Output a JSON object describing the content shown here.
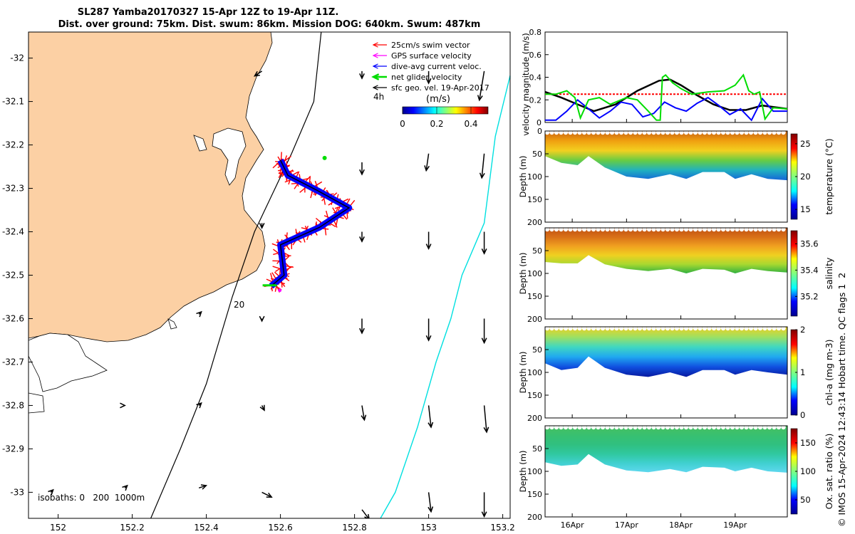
{
  "title": {
    "line1": "SL287 Yamba20170327 15-Apr 12Z to 19-Apr 11Z.",
    "line2": "Dist. over ground: 75km. Dist. swum: 86km. Mission DOG: 640km. Swum: 487km"
  },
  "copyright": "© IMOS 15-Apr-2024 12:43:14 Hobart time. QC flags 1  2",
  "colors": {
    "land": "#fcd0a4",
    "swim": "#ff0000",
    "gps": "#ff00ff",
    "dac": "#0000ff",
    "net": "#00dd00",
    "geo": "#000000",
    "isobath200": "#000000",
    "isobath1000": "#00e0e0"
  },
  "chart_data": [
    {
      "type": "map",
      "xlim": [
        151.92,
        153.22
      ],
      "ylim": [
        -33.06,
        -31.94
      ],
      "xticks": [
        152,
        152.2,
        152.4,
        152.6,
        152.8,
        153,
        153.2
      ],
      "xtick_labels": [
        "152",
        "152.2",
        "152.4",
        "152.6",
        "152.8",
        "153",
        "153.2"
      ],
      "yticks": [
        -32,
        -32.1,
        -32.2,
        -32.3,
        -32.4,
        -32.5,
        -32.6,
        -32.7,
        -32.8,
        -32.9,
        -33
      ],
      "ytick_labels": [
        "-32",
        "-32.1",
        "-32.2",
        "-32.3",
        "-32.4",
        "-32.5",
        "-32.6",
        "-32.7",
        "-32.8",
        "-32.9",
        "-33"
      ],
      "legend": [
        {
          "label": "25cm/s swim vector",
          "color": "#ff0000"
        },
        {
          "label": "GPS surface velocity",
          "color": "#ff00ff"
        },
        {
          "label": "dive-avg current veloc.",
          "color": "#0000ff"
        },
        {
          "label": "net glider velocity",
          "color": "#00dd00"
        },
        {
          "label": "sfc geo. vel. 19-Apr-2017",
          "color": "#000000"
        }
      ],
      "legend_extra": "4h",
      "colorbar": {
        "label": "(m/s)",
        "ticks": [
          0,
          0.2,
          0.4
        ],
        "range": [
          0,
          0.5
        ]
      },
      "annotation_depth": "20",
      "isobath_note": "isobaths: 0   200  1000m",
      "track": [
        [
          152.6,
          -32.235
        ],
        [
          152.62,
          -32.27
        ],
        [
          152.7,
          -32.305
        ],
        [
          152.785,
          -32.345
        ],
        [
          152.705,
          -32.39
        ],
        [
          152.6,
          -32.43
        ],
        [
          152.61,
          -32.5
        ],
        [
          152.575,
          -32.525
        ]
      ],
      "isobath_200": [
        [
          152.71,
          -31.94
        ],
        [
          152.69,
          -32.1
        ],
        [
          152.63,
          -32.22
        ],
        [
          152.53,
          -32.4
        ],
        [
          152.47,
          -32.55
        ],
        [
          152.4,
          -32.75
        ],
        [
          152.33,
          -32.9
        ],
        [
          152.25,
          -33.06
        ]
      ],
      "isobath_1000": [
        [
          153.22,
          -32.04
        ],
        [
          153.18,
          -32.18
        ],
        [
          153.15,
          -32.38
        ],
        [
          153.09,
          -32.5
        ],
        [
          153.06,
          -32.6
        ],
        [
          153.02,
          -32.7
        ],
        [
          152.97,
          -32.85
        ],
        [
          152.91,
          -33
        ],
        [
          152.87,
          -33.06
        ]
      ],
      "geo_vectors": [
        {
          "lon": 152.55,
          "lat": -32.03,
          "u": -0.03,
          "v": -0.02
        },
        {
          "lon": 152.82,
          "lat": -32.03,
          "u": 0.0,
          "v": -0.03
        },
        {
          "lon": 153.0,
          "lat": -32.03,
          "u": 0.0,
          "v": -0.05
        },
        {
          "lon": 153.15,
          "lat": -32.03,
          "u": -0.02,
          "v": -0.12
        },
        {
          "lon": 152.82,
          "lat": -32.24,
          "u": 0.0,
          "v": -0.05
        },
        {
          "lon": 153.0,
          "lat": -32.22,
          "u": -0.01,
          "v": -0.07
        },
        {
          "lon": 153.15,
          "lat": -32.22,
          "u": -0.01,
          "v": -0.1
        },
        {
          "lon": 152.55,
          "lat": -32.38,
          "u": 0.0,
          "v": -0.02
        },
        {
          "lon": 152.82,
          "lat": -32.4,
          "u": 0.0,
          "v": -0.04
        },
        {
          "lon": 153.0,
          "lat": -32.4,
          "u": 0.0,
          "v": -0.07
        },
        {
          "lon": 153.15,
          "lat": -32.4,
          "u": 0.0,
          "v": -0.09
        },
        {
          "lon": 152.38,
          "lat": -32.59,
          "u": 0.01,
          "v": 0.01
        },
        {
          "lon": 152.55,
          "lat": -32.6,
          "u": 0.0,
          "v": -0.01
        },
        {
          "lon": 152.82,
          "lat": -32.6,
          "u": 0.0,
          "v": -0.06
        },
        {
          "lon": 153.0,
          "lat": -32.6,
          "u": 0.0,
          "v": -0.09
        },
        {
          "lon": 153.15,
          "lat": -32.6,
          "u": 0.0,
          "v": -0.1
        },
        {
          "lon": 152.38,
          "lat": -32.8,
          "u": 0.01,
          "v": 0.01
        },
        {
          "lon": 152.55,
          "lat": -32.8,
          "u": 0.01,
          "v": -0.02
        },
        {
          "lon": 152.82,
          "lat": -32.8,
          "u": 0.01,
          "v": -0.06
        },
        {
          "lon": 153.0,
          "lat": -32.8,
          "u": 0.01,
          "v": -0.09
        },
        {
          "lon": 153.15,
          "lat": -32.8,
          "u": 0.01,
          "v": -0.11
        },
        {
          "lon": 152.18,
          "lat": -32.99,
          "u": 0.01,
          "v": 0.01
        },
        {
          "lon": 152.38,
          "lat": -32.99,
          "u": 0.03,
          "v": 0.01
        },
        {
          "lon": 152.55,
          "lat": -33.0,
          "u": 0.04,
          "v": -0.02
        },
        {
          "lon": 152.82,
          "lat": -33.04,
          "u": 0.03,
          "v": -0.04
        },
        {
          "lon": 153.0,
          "lat": -33.0,
          "u": 0.01,
          "v": -0.08
        },
        {
          "lon": 153.15,
          "lat": -33.0,
          "u": 0.0,
          "v": -0.1
        },
        {
          "lon": 151.98,
          "lat": -33.0,
          "u": 0.01,
          "v": 0.01
        },
        {
          "lon": 152.18,
          "lat": -32.8,
          "u": 0.0,
          "v": 0.0
        }
      ]
    },
    {
      "type": "line",
      "ylabel": "velocity magnitude (m/s)",
      "xlim": [
        15.5,
        19.96
      ],
      "ylim": [
        0,
        0.8
      ],
      "yticks": [
        0,
        0.2,
        0.4,
        0.6,
        0.8
      ],
      "ytick_labels": [
        "0",
        "0.2",
        "0.4",
        "0.6",
        "0.8"
      ],
      "series": [
        {
          "color": "#ff0000",
          "x": [
            15.5,
            19.96
          ],
          "y": [
            0.25,
            0.25
          ]
        },
        {
          "color": "#000000",
          "x": [
            15.5,
            15.8,
            16.1,
            16.4,
            16.8,
            17.2,
            17.6,
            17.8,
            18.0,
            18.3,
            18.6,
            18.9,
            19.2,
            19.5,
            19.96
          ],
          "y": [
            0.27,
            0.22,
            0.16,
            0.1,
            0.16,
            0.28,
            0.37,
            0.38,
            0.33,
            0.24,
            0.16,
            0.11,
            0.11,
            0.15,
            0.12
          ]
        },
        {
          "color": "#0000ff",
          "x": [
            15.5,
            15.7,
            15.9,
            16.1,
            16.3,
            16.5,
            16.7,
            16.9,
            17.1,
            17.3,
            17.5,
            17.7,
            17.9,
            18.1,
            18.3,
            18.5,
            18.7,
            18.9,
            19.1,
            19.3,
            19.5,
            19.7,
            19.96
          ],
          "y": [
            0.02,
            0.02,
            0.1,
            0.2,
            0.12,
            0.04,
            0.1,
            0.18,
            0.16,
            0.05,
            0.08,
            0.18,
            0.13,
            0.1,
            0.17,
            0.22,
            0.15,
            0.07,
            0.12,
            0.02,
            0.21,
            0.1,
            0.1
          ]
        },
        {
          "color": "#00dd00",
          "x": [
            15.5,
            15.7,
            15.9,
            16.05,
            16.15,
            16.3,
            16.5,
            16.7,
            17.0,
            17.2,
            17.4,
            17.55,
            17.62,
            17.66,
            17.72,
            17.85,
            18.0,
            18.2,
            18.5,
            18.8,
            19.0,
            19.15,
            19.25,
            19.35,
            19.45,
            19.55,
            19.7,
            19.96
          ],
          "y": [
            0.25,
            0.25,
            0.28,
            0.22,
            0.04,
            0.2,
            0.22,
            0.16,
            0.22,
            0.2,
            0.1,
            0.02,
            0.02,
            0.4,
            0.42,
            0.35,
            0.3,
            0.25,
            0.27,
            0.28,
            0.33,
            0.42,
            0.28,
            0.25,
            0.27,
            0.03,
            0.13,
            0.12
          ]
        }
      ],
      "xticks": [
        16,
        17,
        18,
        19
      ]
    },
    {
      "type": "heatmap",
      "ylabel": "Depth (m)",
      "cblabel": "temperature (°C)",
      "cb_ticks": [
        15,
        20,
        25
      ],
      "cb_range": [
        13.5,
        26.5
      ],
      "ylim": [
        0,
        200
      ],
      "yticks": [
        0,
        50,
        100,
        150,
        200
      ],
      "bottom_depth": [
        [
          15.5,
          55
        ],
        [
          15.8,
          70
        ],
        [
          16.1,
          75
        ],
        [
          16.3,
          55
        ],
        [
          16.6,
          80
        ],
        [
          17.0,
          100
        ],
        [
          17.4,
          105
        ],
        [
          17.8,
          95
        ],
        [
          18.1,
          105
        ],
        [
          18.4,
          90
        ],
        [
          18.8,
          90
        ],
        [
          19.0,
          105
        ],
        [
          19.3,
          95
        ],
        [
          19.6,
          105
        ],
        [
          19.96,
          108
        ]
      ],
      "layers": [
        [
          0,
          24
        ],
        [
          30,
          24.5
        ],
        [
          55,
          22
        ],
        [
          70,
          19
        ],
        [
          90,
          17
        ],
        [
          110,
          15.5
        ]
      ]
    },
    {
      "type": "heatmap",
      "ylabel": "Depth (m)",
      "cblabel": "salinity",
      "cb_ticks": [
        35.2,
        35.4,
        35.6
      ],
      "cb_ticks_label": [
        "35.2",
        "35.4",
        "35.6"
      ],
      "cb_range": [
        35.05,
        35.7
      ],
      "ylim": [
        0,
        200
      ],
      "yticks": [
        50,
        100,
        150,
        200
      ],
      "bottom_depth": [
        [
          15.5,
          75
        ],
        [
          15.8,
          78
        ],
        [
          16.1,
          78
        ],
        [
          16.3,
          60
        ],
        [
          16.6,
          80
        ],
        [
          17.0,
          90
        ],
        [
          17.4,
          95
        ],
        [
          17.8,
          90
        ],
        [
          18.1,
          100
        ],
        [
          18.4,
          90
        ],
        [
          18.8,
          92
        ],
        [
          19.0,
          100
        ],
        [
          19.3,
          90
        ],
        [
          19.6,
          95
        ],
        [
          19.96,
          98
        ]
      ],
      "layers": [
        [
          0,
          35.57
        ],
        [
          40,
          35.62
        ],
        [
          60,
          35.55
        ],
        [
          80,
          35.45
        ],
        [
          95,
          35.38
        ]
      ]
    },
    {
      "type": "heatmap",
      "ylabel": "Depth (m)",
      "cblabel": "chl-a (mg m-3)",
      "cb_ticks": [
        0,
        1,
        2
      ],
      "cb_range": [
        0,
        2
      ],
      "ylim": [
        0,
        200
      ],
      "yticks": [
        50,
        100,
        150,
        200
      ],
      "bottom_depth": [
        [
          15.5,
          80
        ],
        [
          15.8,
          95
        ],
        [
          16.1,
          90
        ],
        [
          16.3,
          65
        ],
        [
          16.6,
          90
        ],
        [
          17.0,
          105
        ],
        [
          17.4,
          110
        ],
        [
          17.8,
          100
        ],
        [
          18.1,
          110
        ],
        [
          18.4,
          95
        ],
        [
          18.8,
          95
        ],
        [
          19.0,
          105
        ],
        [
          19.3,
          95
        ],
        [
          19.6,
          100
        ],
        [
          19.96,
          105
        ]
      ],
      "layers": [
        [
          0,
          0.4
        ],
        [
          15,
          0.8
        ],
        [
          35,
          1.3
        ],
        [
          55,
          0.8
        ],
        [
          75,
          0.45
        ],
        [
          95,
          0.3
        ]
      ]
    },
    {
      "type": "heatmap",
      "ylabel": "Depth (m)",
      "cblabel": "Ox. sat. ratio (%)",
      "cb_ticks": [
        50,
        100,
        150
      ],
      "cb_range": [
        25,
        175
      ],
      "ylim": [
        0,
        200
      ],
      "yticks": [
        50,
        100,
        150,
        200
      ],
      "bottom_depth": [
        [
          15.5,
          80
        ],
        [
          15.8,
          88
        ],
        [
          16.1,
          85
        ],
        [
          16.3,
          62
        ],
        [
          16.6,
          85
        ],
        [
          17.0,
          98
        ],
        [
          17.4,
          102
        ],
        [
          17.8,
          95
        ],
        [
          18.1,
          102
        ],
        [
          18.4,
          90
        ],
        [
          18.8,
          92
        ],
        [
          19.0,
          100
        ],
        [
          19.3,
          92
        ],
        [
          19.6,
          100
        ],
        [
          19.96,
          103
        ]
      ],
      "layers": [
        [
          0,
          105
        ],
        [
          40,
          108
        ],
        [
          70,
          100
        ],
        [
          90,
          95
        ]
      ],
      "xticks": [
        16,
        17,
        18,
        19
      ],
      "xtick_labels": [
        "16Apr",
        "17Apr",
        "18Apr",
        "19Apr"
      ]
    }
  ]
}
